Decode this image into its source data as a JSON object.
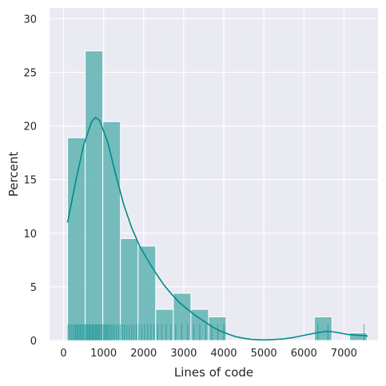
{
  "chart_data": {
    "type": "bar",
    "title": "",
    "xlabel": "Lines of code",
    "ylabel": "Percent",
    "xlim": [
      -350,
      7850
    ],
    "ylim": [
      0,
      31
    ],
    "x_ticks": [
      0,
      1000,
      2000,
      3000,
      4000,
      5000,
      6000,
      7000
    ],
    "y_ticks": [
      0,
      5,
      10,
      15,
      20,
      25,
      30
    ],
    "grid": true,
    "legend": "none",
    "colors": {
      "background": "#eaeaf2",
      "grid": "#ffffff",
      "bar_fill": "#5fb3b3",
      "bar_edge": "#ffffff",
      "kde_line": "#008b8b",
      "rug": "#008b8b"
    },
    "bins": [
      {
        "x0": 100,
        "x1": 540,
        "percent": 18.9
      },
      {
        "x0": 540,
        "x1": 980,
        "percent": 27.0
      },
      {
        "x0": 980,
        "x1": 1420,
        "percent": 20.4
      },
      {
        "x0": 1420,
        "x1": 1860,
        "percent": 9.5
      },
      {
        "x0": 1860,
        "x1": 2300,
        "percent": 8.8
      },
      {
        "x0": 2300,
        "x1": 2740,
        "percent": 2.9
      },
      {
        "x0": 2740,
        "x1": 3180,
        "percent": 4.4
      },
      {
        "x0": 3180,
        "x1": 3620,
        "percent": 2.9
      },
      {
        "x0": 3620,
        "x1": 4060,
        "percent": 2.2
      },
      {
        "x0": 4060,
        "x1": 4500,
        "percent": 0
      },
      {
        "x0": 4500,
        "x1": 4940,
        "percent": 0
      },
      {
        "x0": 4940,
        "x1": 5380,
        "percent": 0
      },
      {
        "x0": 5380,
        "x1": 5820,
        "percent": 0
      },
      {
        "x0": 5820,
        "x1": 6260,
        "percent": 0
      },
      {
        "x0": 6260,
        "x1": 6700,
        "percent": 2.2
      },
      {
        "x0": 6700,
        "x1": 7140,
        "percent": 0
      },
      {
        "x0": 7140,
        "x1": 7580,
        "percent": 0.7
      }
    ],
    "kde": {
      "x": [
        100,
        300,
        500,
        700,
        800,
        900,
        1100,
        1300,
        1500,
        1700,
        1900,
        2100,
        2300,
        2500,
        2700,
        2900,
        3100,
        3300,
        3500,
        3700,
        3900,
        4100,
        4300,
        4500,
        4700,
        4900,
        5100,
        5300,
        5500,
        5700,
        5900,
        6100,
        6300,
        6500,
        6600,
        6700,
        6900,
        7100,
        7300,
        7500,
        7600
      ],
      "y": [
        11.0,
        14.8,
        18.2,
        20.4,
        20.8,
        20.5,
        18.5,
        15.5,
        12.7,
        10.5,
        8.8,
        7.5,
        6.3,
        5.2,
        4.3,
        3.5,
        2.9,
        2.3,
        1.8,
        1.3,
        0.9,
        0.6,
        0.35,
        0.2,
        0.1,
        0.05,
        0.05,
        0.1,
        0.15,
        0.25,
        0.4,
        0.55,
        0.7,
        0.82,
        0.85,
        0.82,
        0.7,
        0.55,
        0.5,
        0.45,
        0.4
      ]
    },
    "rug": [
      110,
      150,
      190,
      230,
      270,
      300,
      330,
      360,
      390,
      420,
      450,
      480,
      510,
      540,
      560,
      590,
      610,
      640,
      660,
      690,
      720,
      740,
      770,
      800,
      820,
      850,
      870,
      900,
      930,
      960,
      990,
      1020,
      1050,
      1080,
      1110,
      1150,
      1190,
      1230,
      1270,
      1320,
      1370,
      1420,
      1470,
      1520,
      1580,
      1640,
      1700,
      1760,
      1820,
      1880,
      1950,
      2020,
      2100,
      2180,
      2260,
      2350,
      2450,
      2560,
      2680,
      2800,
      2950,
      3100,
      3250,
      3400,
      3550,
      3700,
      3850,
      4000,
      6350,
      6600,
      7500
    ],
    "rug_height_percent": 1.5
  }
}
